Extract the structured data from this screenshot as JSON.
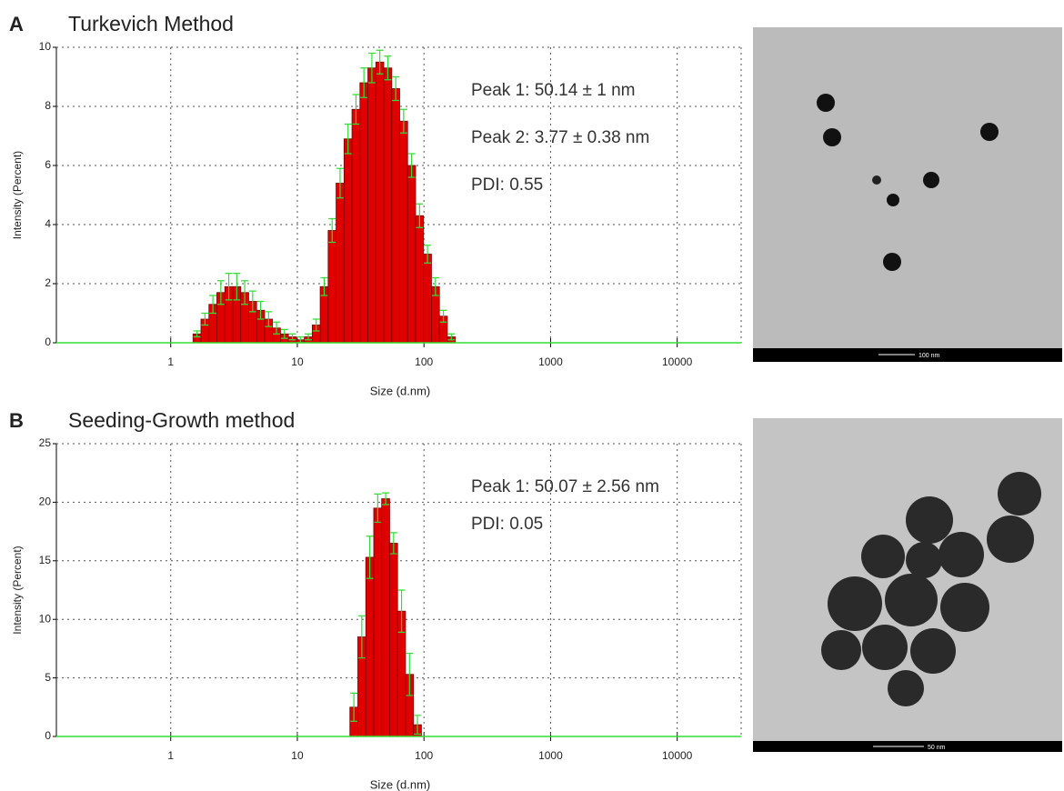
{
  "chart_data": [
    {
      "type": "histogram",
      "panel": "A",
      "title": "Turkevich Method",
      "xlabel": "Size (d.nm)",
      "ylabel": "Intensity (Percent)",
      "xlog": true,
      "xlim": [
        0.125,
        32000
      ],
      "xticks": [
        1,
        10,
        100,
        1000,
        10000
      ],
      "ylim": [
        0,
        10
      ],
      "yticks": [
        0,
        2,
        4,
        6,
        8,
        10
      ],
      "grid": true,
      "color": "#e00000",
      "edge_color": "#7a0000",
      "error_color": "#33dd33",
      "bins": [
        1.5,
        1.733,
        2.003,
        2.314,
        2.674,
        3.09,
        3.571,
        4.126,
        4.768,
        5.509,
        6.366,
        7.356,
        8.5,
        9.822,
        11.35,
        13.11,
        15.15,
        17.51,
        20.23,
        23.38,
        27.01,
        31.21,
        36.07,
        41.67,
        48.16,
        55.64,
        64.3,
        74.29,
        85.85,
        99.2,
        114.6,
        132.5,
        153.1,
        176.9
      ],
      "counts": [
        0.3,
        0.8,
        1.3,
        1.7,
        1.9,
        1.9,
        1.7,
        1.4,
        1.1,
        0.8,
        0.5,
        0.3,
        0.2,
        0.1,
        0.2,
        0.6,
        1.9,
        3.8,
        5.4,
        6.9,
        7.9,
        8.8,
        9.3,
        9.5,
        9.3,
        8.6,
        7.5,
        6.0,
        4.3,
        3.0,
        1.9,
        0.9,
        0.2
      ],
      "errors": [
        0.1,
        0.2,
        0.3,
        0.4,
        0.45,
        0.45,
        0.4,
        0.35,
        0.3,
        0.25,
        0.2,
        0.15,
        0.1,
        0.1,
        0.1,
        0.2,
        0.3,
        0.4,
        0.5,
        0.5,
        0.5,
        0.5,
        0.5,
        0.4,
        0.4,
        0.4,
        0.4,
        0.4,
        0.4,
        0.3,
        0.3,
        0.2,
        0.1
      ],
      "annotations": [
        "Peak 1: 50.14 ± 1  nm",
        "Peak 2: 3.77 ± 0.38  nm",
        "PDI: 0.55"
      ]
    },
    {
      "type": "histogram",
      "panel": "B",
      "title": "Seeding-Growth method",
      "xlabel": "Size (d.nm)",
      "ylabel": "Intensity (Percent)",
      "xlog": true,
      "xlim": [
        0.125,
        32000
      ],
      "xticks": [
        1,
        10,
        100,
        1000,
        10000
      ],
      "ylim": [
        0,
        25
      ],
      "yticks": [
        0,
        5,
        10,
        15,
        20,
        25
      ],
      "grid": true,
      "color": "#e00000",
      "edge_color": "#7a0000",
      "error_color": "#33dd33",
      "bins": [
        26,
        30.04,
        34.71,
        40.11,
        46.35,
        53.56,
        61.89,
        71.51,
        82.63,
        95.48
      ],
      "counts": [
        2.5,
        8.5,
        15.3,
        19.5,
        20.3,
        16.5,
        10.7,
        5.3,
        1.0
      ],
      "errors": [
        1.2,
        1.8,
        1.8,
        1.2,
        0.5,
        0.9,
        1.8,
        1.8,
        0.8
      ],
      "annotations": [
        "Peak 1: 50.07 ± 2.56 nm",
        "PDI: 0.05"
      ]
    }
  ],
  "micrographs": [
    {
      "scale_label": "100 nm"
    },
    {
      "scale_label": "50 nm"
    }
  ]
}
